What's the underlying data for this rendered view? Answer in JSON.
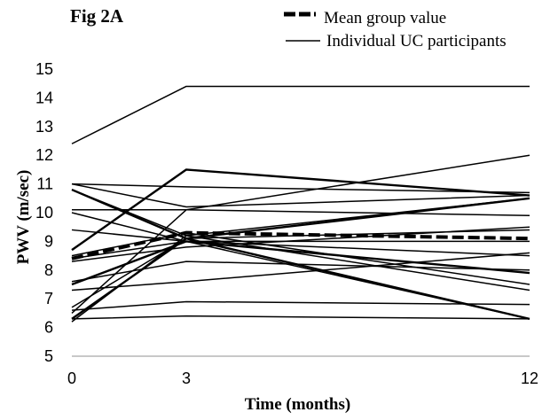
{
  "figure_label": "Fig 2A",
  "chart_data": {
    "type": "line",
    "title": "",
    "xlabel": "Time (months)",
    "ylabel": "PWV  (m/sec)",
    "xlim": [
      0,
      12
    ],
    "ylim": [
      5,
      15
    ],
    "x_ticks": [
      0,
      3,
      12
    ],
    "y_ticks": [
      5,
      6,
      7,
      8,
      9,
      10,
      11,
      12,
      13,
      14,
      15
    ],
    "grid": false,
    "legend": {
      "position": "top-right",
      "entries": [
        {
          "label": "Mean group value",
          "style": "dashed-bold"
        },
        {
          "label": "Individual UC participants",
          "style": "solid"
        }
      ]
    },
    "x": [
      0,
      3,
      12
    ],
    "mean": {
      "name": "Mean group value",
      "values": [
        8.4,
        9.3,
        9.1
      ]
    },
    "individuals": [
      [
        12.4,
        14.4,
        14.4
      ],
      [
        11.0,
        10.9,
        10.7
      ],
      [
        11.0,
        10.2,
        10.6
      ],
      [
        10.8,
        9.1,
        6.3
      ],
      [
        10.8,
        9.2,
        7.3
      ],
      [
        10.1,
        10.1,
        9.9
      ],
      [
        10.0,
        9.0,
        6.3
      ],
      [
        9.4,
        9.0,
        8.5
      ],
      [
        8.7,
        11.5,
        10.6
      ],
      [
        8.5,
        9.3,
        7.5
      ],
      [
        8.4,
        9.0,
        9.0
      ],
      [
        8.3,
        8.8,
        9.5
      ],
      [
        7.6,
        8.3,
        8.0
      ],
      [
        7.5,
        9.0,
        7.9
      ],
      [
        7.3,
        7.6,
        8.6
      ],
      [
        6.7,
        9.1,
        9.4
      ],
      [
        6.6,
        6.9,
        6.8
      ],
      [
        6.5,
        10.1,
        12.0
      ],
      [
        6.3,
        9.1,
        10.5
      ],
      [
        6.2,
        9.2,
        10.5
      ],
      [
        6.3,
        6.4,
        6.3
      ]
    ],
    "individuals_name": "Individual UC participants"
  }
}
